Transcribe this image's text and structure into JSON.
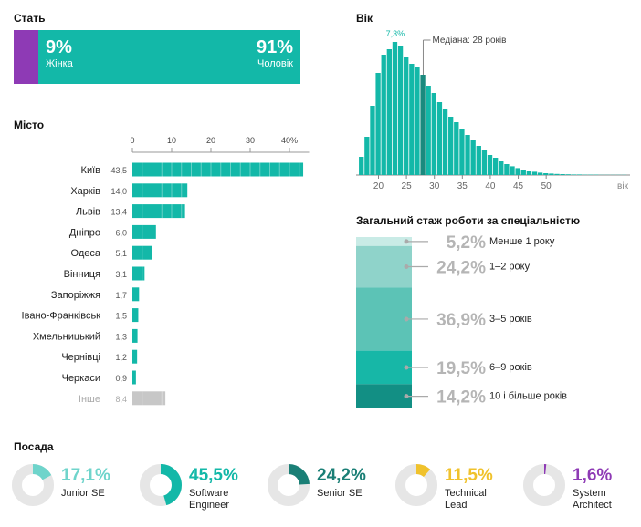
{
  "colors": {
    "teal": "#13b8a8",
    "purple": "#8e3ab5",
    "gray": "#c7c7c7",
    "track": "#e6e6e6",
    "dark_teal": "#1a8a7e",
    "yellow": "#f0c22c",
    "median": "#1a8a7e"
  },
  "chart_data": [
    {
      "type": "bar",
      "title": "Стать",
      "series": [
        {
          "name": "Жінка",
          "value": 9,
          "label": "9%",
          "color": "#8e3ab5"
        },
        {
          "name": "Чоловік",
          "value": 91,
          "label": "91%",
          "color": "#13b8a8"
        }
      ]
    },
    {
      "type": "bar",
      "title": "Місто",
      "xlim": [
        0,
        45
      ],
      "ticks": [
        "0",
        "10",
        "20",
        "30",
        "40%"
      ],
      "tick_values": [
        0,
        10,
        20,
        30,
        40
      ],
      "categories": [
        "Київ",
        "Харків",
        "Львів",
        "Дніпро",
        "Одеса",
        "Вінниця",
        "Запоріжжя",
        "Івано-Франківськ",
        "Хмельницький",
        "Чернівці",
        "Черкаси",
        "Інше"
      ],
      "values": [
        43.5,
        14.0,
        13.4,
        6.0,
        5.1,
        3.1,
        1.7,
        1.5,
        1.3,
        1.2,
        0.9,
        8.4
      ],
      "value_labels": [
        "43,5",
        "14,0",
        "13,4",
        "6,0",
        "5,1",
        "3,1",
        "1,7",
        "1,5",
        "1,3",
        "1,2",
        "0,9",
        "8,4"
      ]
    },
    {
      "type": "bar",
      "title": "Вік",
      "xlabel": "вік",
      "x": [
        17,
        18,
        19,
        20,
        21,
        22,
        23,
        24,
        25,
        26,
        27,
        28,
        29,
        30,
        31,
        32,
        33,
        34,
        35,
        36,
        37,
        38,
        39,
        40,
        41,
        42,
        43,
        44,
        45,
        46,
        47,
        48,
        49,
        50,
        51,
        52,
        53,
        54,
        55,
        56,
        57,
        58,
        59,
        60,
        61,
        62,
        63,
        64
      ],
      "values": [
        1.0,
        2.1,
        3.8,
        5.6,
        6.6,
        6.9,
        7.3,
        7.1,
        6.5,
        6.1,
        5.9,
        5.5,
        4.9,
        4.5,
        4.0,
        3.6,
        3.2,
        2.9,
        2.5,
        2.2,
        1.9,
        1.6,
        1.35,
        1.1,
        0.95,
        0.75,
        0.6,
        0.48,
        0.38,
        0.3,
        0.23,
        0.18,
        0.13,
        0.1,
        0.08,
        0.06,
        0.05,
        0.04,
        0.03,
        0.03,
        0.02,
        0.02,
        0.02,
        0.01,
        0.01,
        0.01,
        0.01,
        0.01
      ],
      "median": 28,
      "ticks": [
        20,
        25,
        30,
        35,
        40,
        45,
        50
      ],
      "peak_label": "7,3%",
      "median_label": "Медіана: 28 років"
    },
    {
      "type": "bar",
      "title": "Загальний стаж роботи за спеціальністю",
      "categories": [
        "Менше 1 року",
        "1–2 року",
        "3–5 років",
        "6–9 років",
        "10 і більше років"
      ],
      "values": [
        5.2,
        24.2,
        36.9,
        19.5,
        14.2
      ],
      "value_labels": [
        "5,2%",
        "24,2%",
        "36,9%",
        "19,5%",
        "14,2%"
      ],
      "colors": [
        "#c9ebe6",
        "#8fd3ca",
        "#5cc3b6",
        "#17b7a7",
        "#128f84"
      ]
    },
    {
      "type": "pie",
      "title": "Посада",
      "categories": [
        "Junior SE",
        "Software Engineer",
        "Senior SE",
        "Technical Lead",
        "System Architect"
      ],
      "values": [
        17.1,
        45.5,
        24.2,
        11.5,
        1.6
      ],
      "value_labels": [
        "17,1%",
        "45,5%",
        "24,2%",
        "11,5%",
        "1,6%"
      ],
      "colors": [
        "#6fd4cb",
        "#13b8a8",
        "#1a7f76",
        "#f0c22c",
        "#8e3ab5"
      ]
    }
  ],
  "labels": {
    "gender_title": "Стать",
    "gender_female_pct": "9%",
    "gender_female": "Жінка",
    "gender_male_pct": "91%",
    "gender_male": "Чоловік",
    "city_title": "Місто",
    "age_title": "Вік",
    "exp_title": "Загальний стаж роботи за спеціальністю",
    "pos_title": "Посада"
  },
  "positions": [
    {
      "pct": "17,1%",
      "name": [
        "Junior SE"
      ]
    },
    {
      "pct": "45,5%",
      "name": [
        "Software",
        "Engineer"
      ]
    },
    {
      "pct": "24,2%",
      "name": [
        "Senior SE"
      ]
    },
    {
      "pct": "11,5%",
      "name": [
        "Technical",
        "Lead"
      ]
    },
    {
      "pct": "1,6%",
      "name": [
        "System",
        "Architect"
      ]
    }
  ]
}
